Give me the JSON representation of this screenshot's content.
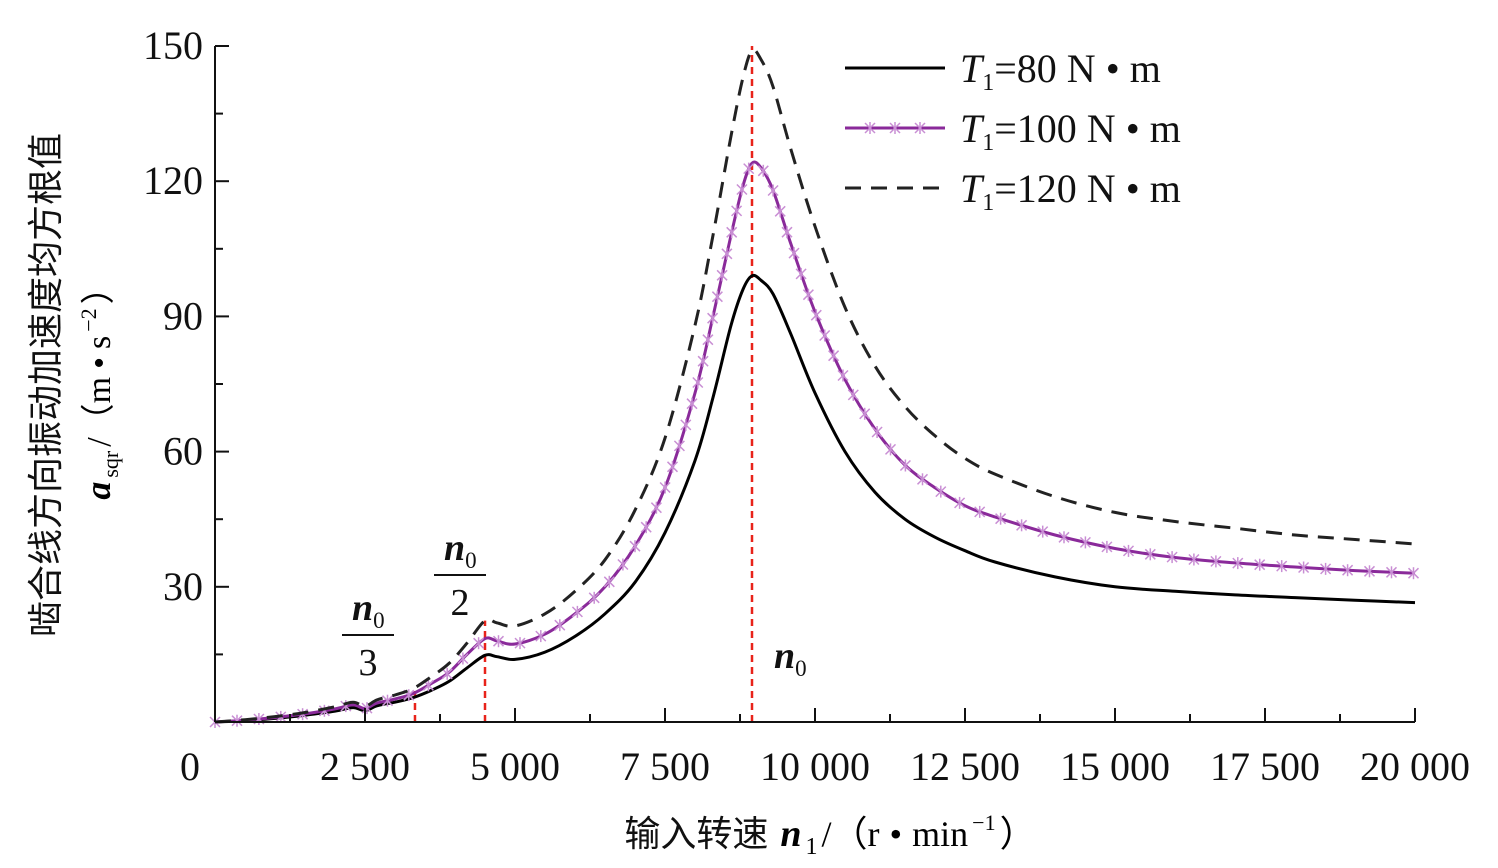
{
  "chart_data": {
    "type": "line",
    "xlabel": {
      "prefix": "输入转速",
      "var": "n",
      "var_sub": "1",
      "unit_open": "/（r",
      "dot": "•",
      "unit_mid": "min",
      "unit_exp": "−1",
      "unit_close": "）"
    },
    "ylabel": {
      "text": "啮合线方向振动加速度均方根值",
      "var": "a",
      "var_sub": "sqr",
      "unit_open": "/（m",
      "dot": "•",
      "unit_mid": "s",
      "unit_exp": "−2",
      "unit_close": "）"
    },
    "xlim": [
      0,
      20000
    ],
    "ylim": [
      0,
      150
    ],
    "x_ticks": [
      {
        "value": 0,
        "label": "0"
      },
      {
        "value": 2500,
        "label": "2 500"
      },
      {
        "value": 5000,
        "label": "5 000"
      },
      {
        "value": 7500,
        "label": "7 500"
      },
      {
        "value": 10000,
        "label": "10 000"
      },
      {
        "value": 12500,
        "label": "12 500"
      },
      {
        "value": 15000,
        "label": "15 000"
      },
      {
        "value": 17500,
        "label": "17 500"
      },
      {
        "value": 20000,
        "label": "20 000"
      }
    ],
    "y_ticks": [
      {
        "value": 30,
        "label": "30"
      },
      {
        "value": 60,
        "label": "60"
      },
      {
        "value": 90,
        "label": "90"
      },
      {
        "value": 120,
        "label": "120"
      },
      {
        "value": 150,
        "label": "150"
      }
    ],
    "grid": false,
    "legend_position": "top-right",
    "series": [
      {
        "name": "T1=80 N•m",
        "legend": {
          "var": "T",
          "sub": "1",
          "rest": "=80 N • m"
        },
        "color": "#000000",
        "style": "solid",
        "markers": false,
        "x": [
          0,
          500,
          1000,
          1500,
          2000,
          2300,
          2500,
          2700,
          3000,
          3300,
          3600,
          3900,
          4200,
          4500,
          4700,
          5000,
          5500,
          6000,
          6500,
          7000,
          7500,
          8000,
          8300,
          8600,
          8800,
          8950,
          9100,
          9300,
          9600,
          10000,
          10500,
          11000,
          11500,
          12000,
          12500,
          13000,
          14000,
          15000,
          16000,
          17000,
          18000,
          19000,
          20000
        ],
        "y": [
          0,
          0.3,
          0.8,
          1.5,
          2.4,
          3.2,
          2.5,
          3.6,
          4.4,
          5.4,
          7.0,
          9.0,
          12.0,
          14.8,
          14.5,
          13.9,
          15.5,
          19.0,
          24.0,
          31.0,
          42.0,
          58.0,
          72.0,
          88.0,
          96.0,
          99.0,
          98.0,
          95.0,
          86.0,
          73.0,
          60.0,
          51.0,
          45.0,
          41.0,
          38.0,
          35.5,
          32.2,
          30.0,
          29.0,
          28.2,
          27.6,
          27.0,
          26.5
        ]
      },
      {
        "name": "T1=100 N•m",
        "legend": {
          "var": "T",
          "sub": "1",
          "rest": "=100 N • m"
        },
        "color": "#8a2a9a",
        "style": "solid",
        "markers": true,
        "x": [
          0,
          500,
          1000,
          1500,
          2000,
          2300,
          2500,
          2700,
          3000,
          3300,
          3600,
          3900,
          4200,
          4500,
          4700,
          5000,
          5500,
          6000,
          6500,
          7000,
          7500,
          8000,
          8300,
          8600,
          8800,
          8950,
          9100,
          9300,
          9600,
          10000,
          10500,
          11000,
          11500,
          12000,
          12500,
          13000,
          14000,
          15000,
          16000,
          17000,
          18000,
          19000,
          20000
        ],
        "y": [
          0,
          0.4,
          1.0,
          1.8,
          2.9,
          3.8,
          3.0,
          4.2,
          5.1,
          6.3,
          8.5,
          11.0,
          15.0,
          18.5,
          18.0,
          17.3,
          19.5,
          24.0,
          30.0,
          39.0,
          52.0,
          73.0,
          90.0,
          108.0,
          119.0,
          124.0,
          123.0,
          118.0,
          106.0,
          91.0,
          76.0,
          65.0,
          57.0,
          52.0,
          48.0,
          45.5,
          41.5,
          38.5,
          36.5,
          35.3,
          34.4,
          33.6,
          33.0
        ]
      },
      {
        "name": "T1=120 N•m",
        "legend": {
          "var": "T",
          "sub": "1",
          "rest": "=120 N • m"
        },
        "color": "#222222",
        "style": "dashed",
        "markers": false,
        "x": [
          0,
          500,
          1000,
          1500,
          2000,
          2300,
          2500,
          2700,
          3000,
          3300,
          3600,
          3900,
          4200,
          4500,
          4700,
          5000,
          5500,
          6000,
          6500,
          7000,
          7500,
          8000,
          8300,
          8600,
          8800,
          8950,
          9100,
          9300,
          9600,
          10000,
          10500,
          11000,
          11500,
          12000,
          12500,
          13000,
          14000,
          15000,
          16000,
          17000,
          18000,
          19000,
          20000
        ],
        "y": [
          0,
          0.5,
          1.2,
          2.1,
          3.4,
          4.4,
          3.5,
          4.9,
          6.0,
          7.4,
          10.0,
          13.0,
          17.5,
          22.5,
          22.0,
          21.3,
          24.0,
          29.0,
          36.0,
          47.0,
          63.0,
          88.0,
          108.0,
          130.0,
          143.0,
          149.0,
          147.0,
          141.0,
          127.0,
          110.0,
          92.0,
          79.0,
          70.0,
          63.5,
          58.5,
          55.0,
          50.0,
          46.5,
          44.5,
          43.0,
          41.5,
          40.5,
          39.5
        ]
      }
    ],
    "reference_lines": [
      {
        "x": 3333,
        "y_top": 7.5,
        "label_num": {
          "var": "n",
          "sub": "0"
        },
        "label_den": "3",
        "label_type": "fraction"
      },
      {
        "x": 4500,
        "y_top": 22.5,
        "label_num": {
          "var": "n",
          "sub": "0"
        },
        "label_den": "2",
        "label_type": "fraction"
      },
      {
        "x": 8950,
        "y_top": 150,
        "label_num": {
          "var": "n",
          "sub": "0"
        },
        "label_den": "",
        "label_type": "plain"
      }
    ],
    "reference_color": "#e8231a"
  }
}
